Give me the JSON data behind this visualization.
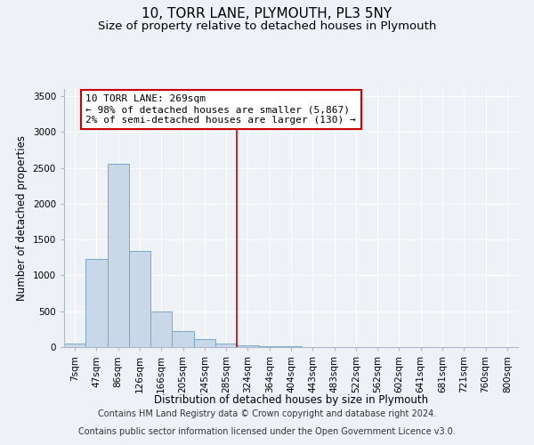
{
  "title": "10, TORR LANE, PLYMOUTH, PL3 5NY",
  "subtitle": "Size of property relative to detached houses in Plymouth",
  "xlabel": "Distribution of detached houses by size in Plymouth",
  "ylabel": "Number of detached properties",
  "categories": [
    "7sqm",
    "47sqm",
    "86sqm",
    "126sqm",
    "166sqm",
    "205sqm",
    "245sqm",
    "285sqm",
    "324sqm",
    "364sqm",
    "404sqm",
    "443sqm",
    "483sqm",
    "522sqm",
    "562sqm",
    "602sqm",
    "641sqm",
    "681sqm",
    "721sqm",
    "760sqm",
    "800sqm"
  ],
  "bar_heights": [
    50,
    1230,
    2560,
    1340,
    500,
    220,
    110,
    55,
    30,
    15,
    10,
    5,
    3,
    2,
    1,
    1,
    0,
    0,
    0,
    0,
    0
  ],
  "bar_color": "#c8d8e8",
  "bar_edge_color": "#7aaac8",
  "background_color": "#eef2f7",
  "grid_color": "#d8e0ea",
  "ylim_max": 3600,
  "yticks": [
    0,
    500,
    1000,
    1500,
    2000,
    2500,
    3000,
    3500
  ],
  "vline_x": 7.5,
  "vline_color": "#cc0000",
  "annotation_text": "10 TORR LANE: 269sqm\n← 98% of detached houses are smaller (5,867)\n2% of semi-detached houses are larger (130) →",
  "annotation_box_color": "#ffffff",
  "annotation_box_edge": "#cc0000",
  "footer_line1": "Contains HM Land Registry data © Crown copyright and database right 2024.",
  "footer_line2": "Contains public sector information licensed under the Open Government Licence v3.0.",
  "title_fontsize": 11,
  "subtitle_fontsize": 9.5,
  "axis_label_fontsize": 8.5,
  "tick_fontsize": 7.5,
  "footer_fontsize": 7,
  "annotation_fontsize": 8
}
